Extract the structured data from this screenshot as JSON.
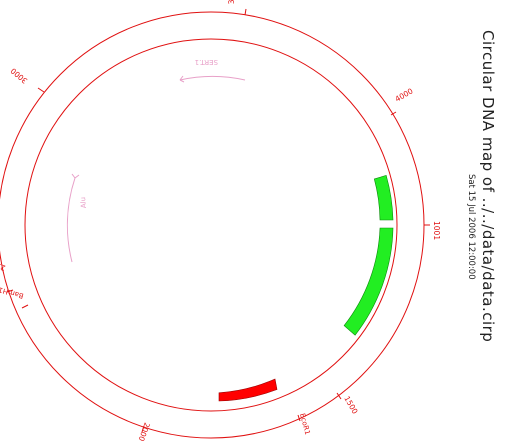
{
  "title": "Circular DNA map of ../../data/data.cirp",
  "date": "Sat 15 Jul 2006 12:00:00",
  "colors": {
    "map": "#e01010",
    "feature_green": "#22ee22",
    "feature_red": "#ff0000",
    "annotation": "#e8a0c8"
  },
  "map": {
    "tick_labels": [
      "1001",
      "1500",
      "2000",
      "2500",
      "3000",
      "3500",
      "4000"
    ],
    "sites": [
      "EcoR1",
      "BamH1"
    ]
  },
  "features": [
    {
      "name": "green-block-1",
      "color_key": "feature_green"
    },
    {
      "name": "green-block-2",
      "color_key": "feature_green"
    },
    {
      "name": "red-block",
      "color_key": "feature_red"
    }
  ],
  "annotations": [
    {
      "label": "SERT.1"
    },
    {
      "label": "Alu"
    }
  ]
}
